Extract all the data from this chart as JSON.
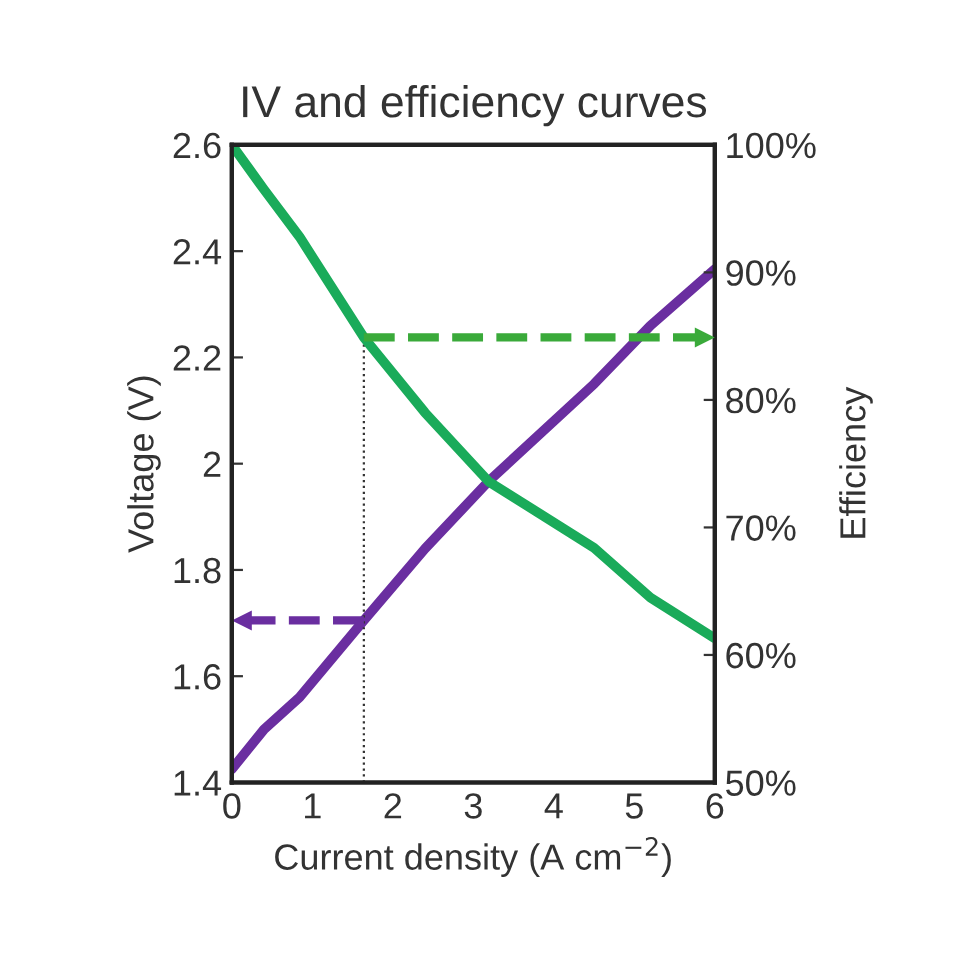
{
  "chart_data": {
    "type": "line",
    "title": "IV and efficiency curves",
    "xlabel": "Current density (A cm$^{−2}$)",
    "ylabel": "Voltage (V)",
    "y2label": "Efficiency",
    "x": [
      0,
      0.4,
      0.84,
      1.64,
      2.4,
      3.19,
      4.5,
      5.2,
      6
    ],
    "series": [
      {
        "color": "#6a2ea0",
        "values": [
          1.425,
          1.5,
          1.56,
          1.705,
          1.84,
          1.967,
          2.15,
          2.26,
          2.366
        ]
      },
      {
        "color": "#1aab5a",
        "axis": "y2",
        "values": [
          100,
          96.5,
          92.8,
          84.9,
          79,
          73.6,
          68.4,
          64.5,
          61.3
        ]
      }
    ],
    "xlim": [
      0,
      6
    ],
    "xticks": [
      0,
      1,
      2,
      3,
      4,
      5,
      6
    ],
    "ylim": [
      1.4,
      2.6
    ],
    "yticks": [
      1.4,
      1.6,
      1.8,
      2,
      2.2,
      2.4,
      2.6
    ],
    "y2lim": [
      50,
      100
    ],
    "y2ticks": [
      {
        "value": 50,
        "label": "50%"
      },
      {
        "value": 60,
        "label": "60%"
      },
      {
        "value": 70,
        "label": "70%"
      },
      {
        "value": 80,
        "label": "80%"
      },
      {
        "value": 90,
        "label": "90%"
      },
      {
        "value": 100,
        "label": "100%"
      }
    ],
    "ref_lines": [
      {
        "axis": "x",
        "value": 1.64,
        "color": "#333333",
        "line_style": "dotted"
      },
      {
        "axis": "y",
        "value": 1.705,
        "color": "#6a2ea0",
        "line_style": "dashed"
      },
      {
        "axis": "y2",
        "value": 84.9,
        "color": "#3aaa3a",
        "line_style": "dashed"
      }
    ]
  }
}
